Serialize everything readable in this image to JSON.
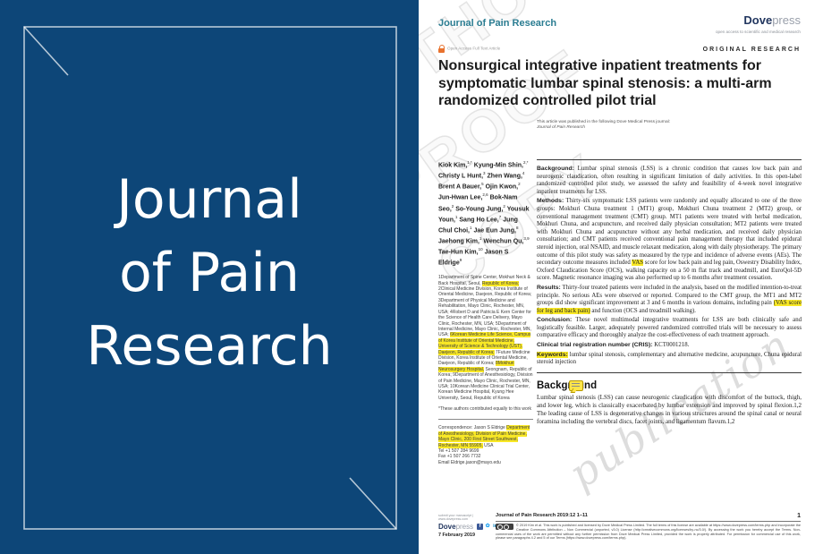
{
  "colors": {
    "cover_blue": "#0d4678",
    "journal_teal": "#2b7d92",
    "dove_navy": "#22365f",
    "highlight_yellow": "#f9e825",
    "open_access_orange": "#e8722e",
    "facebook_blue": "#3b5998",
    "twitter_blue": "#1da1f2",
    "linkedin_blue": "#0077b5",
    "youtube_red": "#e52d27"
  },
  "icons": [
    "open-access-lock-icon",
    "comment-icon",
    "facebook-icon",
    "twitter-icon",
    "linkedin-icon",
    "youtube-icon",
    "cc-license-badge"
  ],
  "cover": {
    "title_lines": [
      "Journal",
      "of Pain",
      "Research"
    ]
  },
  "watermark": {
    "outline_lines": [
      "AUTHOR",
      "PROOF",
      "COPY"
    ],
    "script_text": "publication"
  },
  "header": {
    "journal_name": "Journal of Pain Research",
    "publisher_bold": "Dove",
    "publisher_light": "press",
    "tagline": "open access to scientific and medical research",
    "open_access_label": "Open Access Full Text Article",
    "article_type": "ORIGINAL RESEARCH"
  },
  "title": "Nonsurgical integrative inpatient treatments for symptomatic lumbar spinal stenosis: a multi-arm randomized controlled pilot trial",
  "published_note": {
    "line1": "This article was published in the following Dove Medical Press journal:",
    "line2": "Journal of Pain Research"
  },
  "authors": [
    {
      "name": "Kiok Kim,",
      "sup": "1,*"
    },
    {
      "name": "Kyung-Min Shin,",
      "sup": "2,*"
    },
    {
      "name": "Christy L Hunt,",
      "sup": "3"
    },
    {
      "name": "Zhen Wang,",
      "sup": "4"
    },
    {
      "name": "Brent A Bauer,",
      "sup": "5"
    },
    {
      "name": "Ojin Kwon,",
      "sup": "2"
    },
    {
      "name": "Jun-Hwan Lee,",
      "sup": "2,6"
    },
    {
      "name": "Bok-Nam Seo,",
      "sup": "2"
    },
    {
      "name": "So-Young Jung,",
      "sup": "2"
    },
    {
      "name": "Yousuk Youn,",
      "sup": "1"
    },
    {
      "name": "Sang Ho Lee,",
      "sup": "7"
    },
    {
      "name": "Jung Chul Choi,",
      "sup": "1"
    },
    {
      "name": "Jae Eun Jung,",
      "sup": "8"
    },
    {
      "name": "Jaehong Kim,",
      "sup": "1"
    },
    {
      "name": "Wenchun Qu,",
      "sup": "3,9"
    },
    {
      "name": "Tae-Hun Kim,",
      "sup": "10"
    },
    {
      "name": "Jason S Eldrige",
      "sup": "9"
    }
  ],
  "affiliation_segments": [
    {
      "t": "1Department of Spine Center, Mokhuri Neck & Back Hospital, Seoul, ",
      "h": false
    },
    {
      "t": "Republic of Korea;",
      "h": true
    },
    {
      "t": " 2Clinical Medicine Division, Korea Institute of Oriental Medicine, Daejeon, Republic of Korea; 3Department of Physical Medicine and Rehabilitation, Mayo Clinic, Rochester, MN, USA; 4Robert D and Patricia E Kern Center for the Science of Health Care Delivery, Mayo Clinic, Rochester, MN, USA; 5Department of Internal Medicine, Mayo Clinic, Rochester, MN, USA; ",
      "h": false
    },
    {
      "t": "6Korean Medicine Life Science, Campus of Korea Institute of Oriental Medicine, University of Science & Technology (UST), Daejeon, Republic of Korea;",
      "h": true
    },
    {
      "t": " 7Future Medicine Division, Korea Institute of Oriental Medicine, Daejeon, Republic of Korea; ",
      "h": false
    },
    {
      "t": "8Mokhuri Neurosurgery Hospital,",
      "h": true
    },
    {
      "t": " Seongnam, Republic of Korea; 9Department of Anesthesiology, Division of Pain Medicine, Mayo Clinic, Rochester, MN, USA; 10Korean Medicine Clinical Trial Center, Korean Medicine Hospital, Kyung Hee University, Seoul, Republic of Korea",
      "h": false
    }
  ],
  "contributed_note": "*These authors contributed equally to this work",
  "correspondence": {
    "segments": [
      {
        "t": "Correspondence: Jason S Eldrige ",
        "h": false
      },
      {
        "t": "Department of Anesthesiology, Division of Pain Medicine, Mayo Clinic, 200 First Street Southwest, Rochester, MN 55905,",
        "h": true
      },
      {
        "t": " USA",
        "h": false
      }
    ],
    "lines": [
      "Tel +1 507 284 9699",
      "Fax +1 507 266 7732",
      "Email Eldrige.jason@mayo.edu"
    ]
  },
  "abstract_sections": [
    {
      "label": "Background:",
      "label_h": false,
      "segments": [
        {
          "t": " Lumbar spinal stenosis (LSS) is a chronic condition that causes low back pain and neurogenic claudication, often resulting in significant limitation of daily activities. In this open-label randomized controlled pilot study, we assessed the safety and feasibility of 4-week novel integrative inpatient treatments for LSS.",
          "h": false
        }
      ]
    },
    {
      "label": "Methods:",
      "label_h": false,
      "segments": [
        {
          "t": " Thirty-six symptomatic LSS patients were randomly and equally allocated to one of the three groups: Mokhuri Chuna treatment 1 (MT1) group, Mokhuri Chuna treatment 2 (MT2) group, or conventional management treatment (CMT) group. MT1 patients were treated with herbal medication, Mokhuri Chuna, and acupuncture, and received daily physician consultation; MT2 patients were treated with Mokhuri Chuna and acupuncture without any herbal medication, and received daily physician consultation; and CMT patients received conventional pain management therapy that included epidural steroid injection, oral NSAID, and muscle relaxant medication, along with daily physiotherapy. The primary outcome of this pilot study was safety as measured by the type and incidence of adverse events (AEs). The secondary outcome measures included ",
          "h": false
        },
        {
          "t": "VAS",
          "h": true
        },
        {
          "t": " score for low back pain and leg pain, Oswestry Disability Index, Oxford Claudication Score (OCS), walking capacity on a 50 m flat track and treadmill, and EuroQol-5D score. Magnetic resonance imaging was also performed up to 6 months after treatment cessation.",
          "h": false
        }
      ]
    },
    {
      "label": "Results:",
      "label_h": false,
      "segments": [
        {
          "t": " Thirty-four treated patients were included in the analysis, based on the modified intention-to-treat principle. No serious AEs were observed or reported. Compared to the CMT group, the MT1 and MT2 groups did show significant improvement at 3 and 6 months in various domains, including pain ",
          "h": false
        },
        {
          "t": "(VAS score for leg and back pain)",
          "h": true
        },
        {
          "t": " and function (OCS and treadmill walking).",
          "h": false
        }
      ]
    },
    {
      "label": "Conclusion:",
      "label_h": false,
      "segments": [
        {
          "t": " These novel multimodal integrative treatments for LSS are both clinically safe and logistically feasible. Larger, adequately powered randomized controlled trials will be necessary to assess comparative efficacy and thoroughly analyze the cost-effectiveness of each treatment approach.",
          "h": false
        }
      ]
    },
    {
      "label": "Clinical trial registration number (CRIS):",
      "label_h": false,
      "segments": [
        {
          "t": " KCT0001218.",
          "h": false
        }
      ]
    },
    {
      "label": "Keywords:",
      "label_h": true,
      "segments": [
        {
          "t": " lumbar spinal stenosis, complementary and alternative medicine, acupuncture, Chuna epidural steroid injection",
          "h": false
        }
      ]
    }
  ],
  "background_section": {
    "heading": "Background",
    "body": "Lumbar spinal stenosis (LSS) can cause neurogenic claudication with discomfort of the buttock, thigh, and lower leg, which is classically exacerbated by lumbar extension and improved by spinal flexion.1,2 The leading cause of LSS is degenerative changes in various structures around the spinal canal or neural foramina including the vertebral discs, facet joints, and ligamentum flavum.1,2"
  },
  "footer": {
    "submit_line": "submit your manuscript | www.dovepress.com",
    "publisher_bold": "Dove",
    "publisher_light": "press",
    "date": "7 February 2019",
    "citation": "Journal of Pain Research 2019:12 1–11",
    "page_number": "1",
    "license_text": "© 2019 Kim et al. This work is published and licensed by Dove Medical Press Limited. The full terms of this license are available at https://www.dovepress.com/terms.php and incorporate the Creative Commons Attribution – Non Commercial (unported, v3.0) License (http://creativecommons.org/licenses/by-nc/3.0/). By accessing the work you hereby accept the Terms. Non-commercial uses of the work are permitted without any further permission from Dove Medical Press Limited, provided the work is properly attributed. For permission for commercial use of this work, please see paragraphs 4.2 and 5 of our Terms (https://www.dovepress.com/terms.php)."
  }
}
